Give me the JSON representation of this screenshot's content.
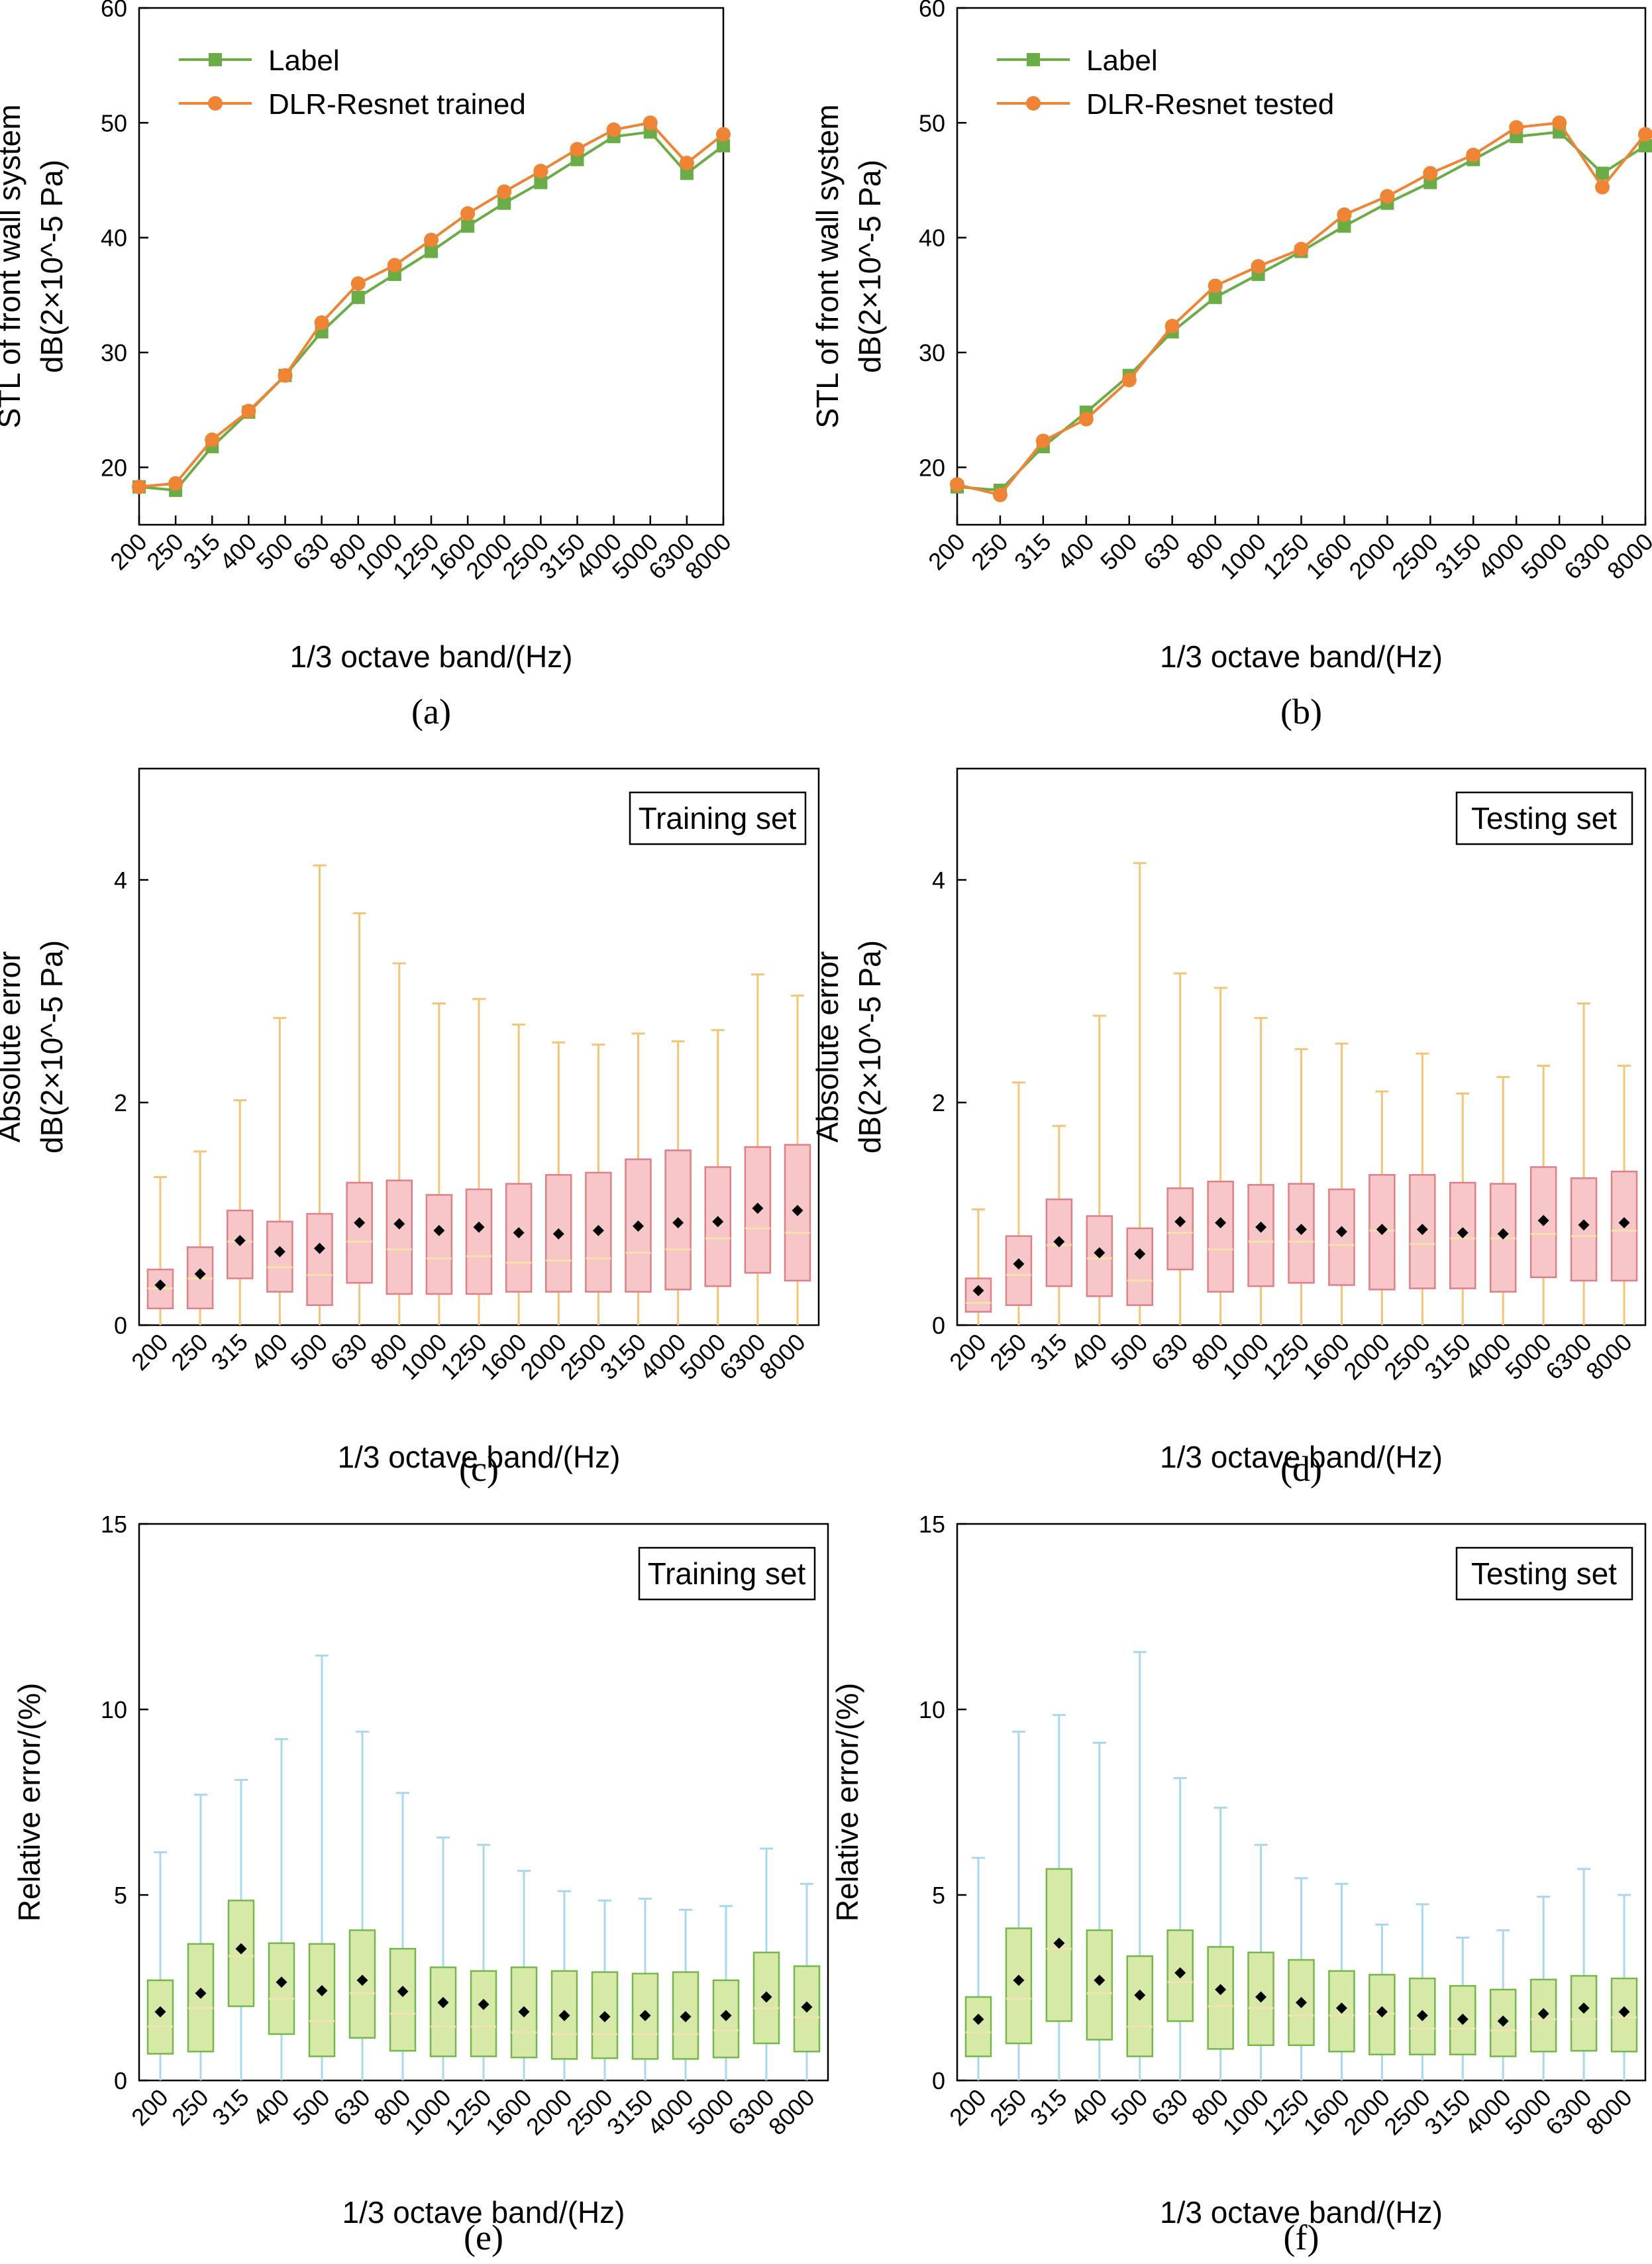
{
  "chart_data": [
    {
      "panel": "a",
      "type": "line",
      "caption": "(a)",
      "xlabel": "1/3 octave band/(Hz)",
      "ylabel_line1": "STL of front wall system",
      "ylabel_line2": "dB(2×10^-5 Pa)",
      "ylim": [
        15,
        60
      ],
      "yticks": [
        20,
        30,
        40,
        50,
        60
      ],
      "grid": false,
      "legend_position": "top-left",
      "categories": [
        "200",
        "250",
        "315",
        "400",
        "500",
        "630",
        "800",
        "1000",
        "1250",
        "1600",
        "2000",
        "2500",
        "3150",
        "4000",
        "5000",
        "6300",
        "8000"
      ],
      "series": [
        {
          "name": "Label",
          "color": "#6aac46",
          "marker": "square",
          "values": [
            18.3,
            18.0,
            21.8,
            24.8,
            28.0,
            31.8,
            34.8,
            36.8,
            38.8,
            41.0,
            43.0,
            44.8,
            46.8,
            48.8,
            49.2,
            45.6,
            48.0
          ]
        },
        {
          "name": "DLR-Resnet trained",
          "color": "#ee8434",
          "marker": "circle",
          "values": [
            18.3,
            18.6,
            22.4,
            24.9,
            28.0,
            32.6,
            36.0,
            37.6,
            39.8,
            42.1,
            44.0,
            45.8,
            47.7,
            49.4,
            50.0,
            46.5,
            49.0
          ]
        }
      ]
    },
    {
      "panel": "b",
      "type": "line",
      "caption": "(b)",
      "xlabel": "1/3 octave band/(Hz)",
      "ylabel_line1": "STL of front wall system",
      "ylabel_line2": "dB(2×10^-5 Pa)",
      "ylim": [
        15,
        60
      ],
      "yticks": [
        20,
        30,
        40,
        50,
        60
      ],
      "grid": false,
      "legend_position": "top-left",
      "categories": [
        "200",
        "250",
        "315",
        "400",
        "500",
        "630",
        "800",
        "1000",
        "1250",
        "1600",
        "2000",
        "2500",
        "3150",
        "4000",
        "5000",
        "6300",
        "8000"
      ],
      "series": [
        {
          "name": "Label",
          "color": "#6aac46",
          "marker": "square",
          "values": [
            18.3,
            18.0,
            21.8,
            24.8,
            28.0,
            31.8,
            34.8,
            36.8,
            38.8,
            41.0,
            43.0,
            44.8,
            46.8,
            48.8,
            49.2,
            45.6,
            48.0
          ]
        },
        {
          "name": "DLR-Resnet tested",
          "color": "#ee8434",
          "marker": "circle",
          "values": [
            18.5,
            17.6,
            22.3,
            24.2,
            27.6,
            32.3,
            35.8,
            37.5,
            39.0,
            42.0,
            43.6,
            45.6,
            47.2,
            49.6,
            50.0,
            44.4,
            49.0
          ]
        }
      ]
    },
    {
      "panel": "c",
      "type": "box",
      "caption": "(c)",
      "set_label": "Training set",
      "xlabel": "1/3 octave band/(Hz)",
      "ylabel_line1": "Absolute error",
      "ylabel_line2": "dB(2×10^-5 Pa)",
      "ylim": [
        0,
        5
      ],
      "yticks": [
        0,
        2,
        4
      ],
      "box_fill": "#f7c6c9",
      "box_stroke": "#e07f86",
      "whisker_color": "#f4c574",
      "median_color": "#f3e2a9",
      "categories": [
        "200",
        "250",
        "315",
        "400",
        "500",
        "630",
        "800",
        "1000",
        "1250",
        "1600",
        "2000",
        "2500",
        "3150",
        "4000",
        "5000",
        "6300",
        "8000"
      ],
      "boxes": [
        {
          "min": 0,
          "q1": 0.15,
          "median": 0.33,
          "q3": 0.5,
          "max": 1.33,
          "mean": 0.36
        },
        {
          "min": 0,
          "q1": 0.15,
          "median": 0.42,
          "q3": 0.7,
          "max": 1.56,
          "mean": 0.46
        },
        {
          "min": 0,
          "q1": 0.42,
          "median": 0.75,
          "q3": 1.03,
          "max": 2.02,
          "mean": 0.76
        },
        {
          "min": 0,
          "q1": 0.3,
          "median": 0.52,
          "q3": 0.93,
          "max": 2.76,
          "mean": 0.66
        },
        {
          "min": 0,
          "q1": 0.18,
          "median": 0.45,
          "q3": 1.0,
          "max": 4.13,
          "mean": 0.69
        },
        {
          "min": 0,
          "q1": 0.38,
          "median": 0.75,
          "q3": 1.28,
          "max": 3.7,
          "mean": 0.92
        },
        {
          "min": 0,
          "q1": 0.28,
          "median": 0.68,
          "q3": 1.3,
          "max": 3.25,
          "mean": 0.91
        },
        {
          "min": 0,
          "q1": 0.28,
          "median": 0.6,
          "q3": 1.17,
          "max": 2.89,
          "mean": 0.85
        },
        {
          "min": 0,
          "q1": 0.28,
          "median": 0.62,
          "q3": 1.22,
          "max": 2.93,
          "mean": 0.88
        },
        {
          "min": 0,
          "q1": 0.3,
          "median": 0.56,
          "q3": 1.27,
          "max": 2.7,
          "mean": 0.83
        },
        {
          "min": 0,
          "q1": 0.3,
          "median": 0.58,
          "q3": 1.35,
          "max": 2.54,
          "mean": 0.82
        },
        {
          "min": 0,
          "q1": 0.3,
          "median": 0.6,
          "q3": 1.37,
          "max": 2.52,
          "mean": 0.85
        },
        {
          "min": 0,
          "q1": 0.3,
          "median": 0.65,
          "q3": 1.49,
          "max": 2.62,
          "mean": 0.89
        },
        {
          "min": 0,
          "q1": 0.32,
          "median": 0.68,
          "q3": 1.57,
          "max": 2.55,
          "mean": 0.92
        },
        {
          "min": 0,
          "q1": 0.35,
          "median": 0.78,
          "q3": 1.42,
          "max": 2.65,
          "mean": 0.93
        },
        {
          "min": 0,
          "q1": 0.47,
          "median": 0.87,
          "q3": 1.6,
          "max": 3.15,
          "mean": 1.05
        },
        {
          "min": 0,
          "q1": 0.4,
          "median": 0.83,
          "q3": 1.62,
          "max": 2.96,
          "mean": 1.03
        }
      ]
    },
    {
      "panel": "d",
      "type": "box",
      "caption": "(d)",
      "set_label": "Testing set",
      "xlabel": "1/3 octave band/(Hz)",
      "ylabel_line1": "Absolute error",
      "ylabel_line2": "dB(2×10^-5 Pa)",
      "ylim": [
        0,
        5
      ],
      "yticks": [
        0,
        2,
        4
      ],
      "box_fill": "#f7c6c9",
      "box_stroke": "#e07f86",
      "whisker_color": "#f4c574",
      "median_color": "#f3e2a9",
      "categories": [
        "200",
        "250",
        "315",
        "400",
        "500",
        "630",
        "800",
        "1000",
        "1250",
        "1600",
        "2000",
        "2500",
        "3150",
        "4000",
        "5000",
        "6300",
        "8000"
      ],
      "boxes": [
        {
          "min": 0,
          "q1": 0.12,
          "median": 0.2,
          "q3": 0.42,
          "max": 1.04,
          "mean": 0.31
        },
        {
          "min": 0,
          "q1": 0.18,
          "median": 0.45,
          "q3": 0.8,
          "max": 2.18,
          "mean": 0.55
        },
        {
          "min": 0,
          "q1": 0.35,
          "median": 0.72,
          "q3": 1.13,
          "max": 1.79,
          "mean": 0.75
        },
        {
          "min": 0,
          "q1": 0.26,
          "median": 0.6,
          "q3": 0.98,
          "max": 2.78,
          "mean": 0.65
        },
        {
          "min": 0,
          "q1": 0.18,
          "median": 0.4,
          "q3": 0.87,
          "max": 4.15,
          "mean": 0.64
        },
        {
          "min": 0,
          "q1": 0.5,
          "median": 0.83,
          "q3": 1.23,
          "max": 3.16,
          "mean": 0.93
        },
        {
          "min": 0,
          "q1": 0.3,
          "median": 0.68,
          "q3": 1.29,
          "max": 3.03,
          "mean": 0.92
        },
        {
          "min": 0,
          "q1": 0.35,
          "median": 0.75,
          "q3": 1.26,
          "max": 2.76,
          "mean": 0.88
        },
        {
          "min": 0,
          "q1": 0.38,
          "median": 0.75,
          "q3": 1.27,
          "max": 2.48,
          "mean": 0.86
        },
        {
          "min": 0,
          "q1": 0.36,
          "median": 0.72,
          "q3": 1.22,
          "max": 2.53,
          "mean": 0.84
        },
        {
          "min": 0,
          "q1": 0.32,
          "median": 0.85,
          "q3": 1.35,
          "max": 2.1,
          "mean": 0.86
        },
        {
          "min": 0,
          "q1": 0.33,
          "median": 0.73,
          "q3": 1.35,
          "max": 2.44,
          "mean": 0.86
        },
        {
          "min": 0,
          "q1": 0.33,
          "median": 0.78,
          "q3": 1.28,
          "max": 2.08,
          "mean": 0.83
        },
        {
          "min": 0,
          "q1": 0.3,
          "median": 0.78,
          "q3": 1.27,
          "max": 2.23,
          "mean": 0.82
        },
        {
          "min": 0,
          "q1": 0.43,
          "median": 0.82,
          "q3": 1.42,
          "max": 2.33,
          "mean": 0.94
        },
        {
          "min": 0,
          "q1": 0.4,
          "median": 0.8,
          "q3": 1.32,
          "max": 2.89,
          "mean": 0.9
        },
        {
          "min": 0,
          "q1": 0.4,
          "median": 0.85,
          "q3": 1.38,
          "max": 2.33,
          "mean": 0.92
        }
      ]
    },
    {
      "panel": "e",
      "type": "box",
      "caption": "(e)",
      "set_label": "Training set",
      "xlabel": "1/3 octave band/(Hz)",
      "ylabel_line1": "Relative error/(%)",
      "ylim": [
        0,
        15
      ],
      "yticks": [
        0,
        5,
        10,
        15
      ],
      "box_fill": "#d6e9a6",
      "box_stroke": "#74b84b",
      "whisker_color": "#a9d7f0",
      "median_color": "#f0e2b2",
      "categories": [
        "200",
        "250",
        "315",
        "400",
        "500",
        "630",
        "800",
        "1000",
        "1250",
        "1600",
        "2000",
        "2500",
        "3150",
        "4000",
        "5000",
        "6300",
        "8000"
      ],
      "boxes": [
        {
          "min": 0,
          "q1": 0.72,
          "median": 1.45,
          "q3": 2.7,
          "max": 6.15,
          "mean": 1.85
        },
        {
          "min": 0,
          "q1": 0.78,
          "median": 1.95,
          "q3": 3.68,
          "max": 7.7,
          "mean": 2.35
        },
        {
          "min": 0,
          "q1": 2.0,
          "median": 3.35,
          "q3": 4.85,
          "max": 8.1,
          "mean": 3.55
        },
        {
          "min": 0,
          "q1": 1.25,
          "median": 2.2,
          "q3": 3.7,
          "max": 9.2,
          "mean": 2.65
        },
        {
          "min": 0,
          "q1": 0.65,
          "median": 1.6,
          "q3": 3.68,
          "max": 11.45,
          "mean": 2.42
        },
        {
          "min": 0,
          "q1": 1.15,
          "median": 2.35,
          "q3": 4.05,
          "max": 9.4,
          "mean": 2.7
        },
        {
          "min": 0,
          "q1": 0.8,
          "median": 1.8,
          "q3": 3.55,
          "max": 7.75,
          "mean": 2.4
        },
        {
          "min": 0,
          "q1": 0.65,
          "median": 1.45,
          "q3": 3.05,
          "max": 6.55,
          "mean": 2.1
        },
        {
          "min": 0,
          "q1": 0.65,
          "median": 1.45,
          "q3": 2.95,
          "max": 6.35,
          "mean": 2.05
        },
        {
          "min": 0,
          "q1": 0.62,
          "median": 1.3,
          "q3": 3.05,
          "max": 5.65,
          "mean": 1.85
        },
        {
          "min": 0,
          "q1": 0.58,
          "median": 1.25,
          "q3": 2.95,
          "max": 5.1,
          "mean": 1.75
        },
        {
          "min": 0,
          "q1": 0.6,
          "median": 1.25,
          "q3": 2.92,
          "max": 4.85,
          "mean": 1.72
        },
        {
          "min": 0,
          "q1": 0.58,
          "median": 1.25,
          "q3": 2.88,
          "max": 4.9,
          "mean": 1.75
        },
        {
          "min": 0,
          "q1": 0.58,
          "median": 1.25,
          "q3": 2.92,
          "max": 4.6,
          "mean": 1.72
        },
        {
          "min": 0,
          "q1": 0.62,
          "median": 1.35,
          "q3": 2.7,
          "max": 4.7,
          "mean": 1.75
        },
        {
          "min": 0,
          "q1": 1.0,
          "median": 1.95,
          "q3": 3.45,
          "max": 6.25,
          "mean": 2.25
        },
        {
          "min": 0,
          "q1": 0.78,
          "median": 1.7,
          "q3": 3.08,
          "max": 5.3,
          "mean": 1.98
        }
      ]
    },
    {
      "panel": "f",
      "type": "box",
      "caption": "(f)",
      "set_label": "Testing set",
      "xlabel": "1/3 octave band/(Hz)",
      "ylabel_line1": "Relative error/(%)",
      "ylim": [
        0,
        15
      ],
      "yticks": [
        0,
        5,
        10,
        15
      ],
      "box_fill": "#d6e9a6",
      "box_stroke": "#74b84b",
      "whisker_color": "#a9d7f0",
      "median_color": "#f0e2b2",
      "categories": [
        "200",
        "250",
        "315",
        "400",
        "500",
        "630",
        "800",
        "1000",
        "1250",
        "1600",
        "2000",
        "2500",
        "3150",
        "4000",
        "5000",
        "6300",
        "8000"
      ],
      "boxes": [
        {
          "min": 0,
          "q1": 0.65,
          "median": 1.3,
          "q3": 2.25,
          "max": 6.0,
          "mean": 1.65
        },
        {
          "min": 0,
          "q1": 1.0,
          "median": 2.2,
          "q3": 4.1,
          "max": 9.4,
          "mean": 2.7
        },
        {
          "min": 0,
          "q1": 1.6,
          "median": 3.55,
          "q3": 5.7,
          "max": 9.85,
          "mean": 3.7
        },
        {
          "min": 0,
          "q1": 1.1,
          "median": 2.35,
          "q3": 4.05,
          "max": 9.1,
          "mean": 2.7
        },
        {
          "min": 0,
          "q1": 0.65,
          "median": 1.45,
          "q3": 3.35,
          "max": 11.55,
          "mean": 2.3
        },
        {
          "min": 0,
          "q1": 1.6,
          "median": 2.65,
          "q3": 4.05,
          "max": 8.15,
          "mean": 2.9
        },
        {
          "min": 0,
          "q1": 0.85,
          "median": 2.0,
          "q3": 3.6,
          "max": 7.35,
          "mean": 2.45
        },
        {
          "min": 0,
          "q1": 0.95,
          "median": 1.95,
          "q3": 3.45,
          "max": 6.35,
          "mean": 2.25
        },
        {
          "min": 0,
          "q1": 0.95,
          "median": 1.75,
          "q3": 3.25,
          "max": 5.45,
          "mean": 2.1
        },
        {
          "min": 0,
          "q1": 0.78,
          "median": 1.75,
          "q3": 2.95,
          "max": 5.3,
          "mean": 1.95
        },
        {
          "min": 0,
          "q1": 0.7,
          "median": 1.8,
          "q3": 2.85,
          "max": 4.2,
          "mean": 1.85
        },
        {
          "min": 0,
          "q1": 0.7,
          "median": 1.4,
          "q3": 2.75,
          "max": 4.75,
          "mean": 1.75
        },
        {
          "min": 0,
          "q1": 0.7,
          "median": 1.4,
          "q3": 2.55,
          "max": 3.85,
          "mean": 1.65
        },
        {
          "min": 0,
          "q1": 0.65,
          "median": 1.35,
          "q3": 2.45,
          "max": 4.05,
          "mean": 1.6
        },
        {
          "min": 0,
          "q1": 0.78,
          "median": 1.65,
          "q3": 2.72,
          "max": 4.95,
          "mean": 1.8
        },
        {
          "min": 0,
          "q1": 0.8,
          "median": 1.65,
          "q3": 2.82,
          "max": 5.7,
          "mean": 1.95
        },
        {
          "min": 0,
          "q1": 0.78,
          "median": 1.7,
          "q3": 2.75,
          "max": 5.0,
          "mean": 1.85
        }
      ]
    }
  ]
}
